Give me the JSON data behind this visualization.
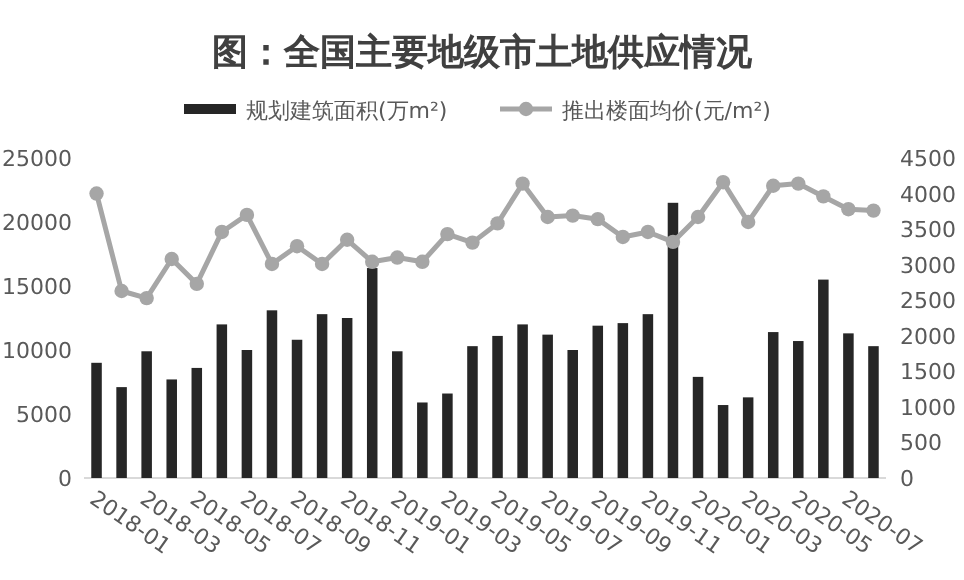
{
  "chart_data": {
    "type": "bar",
    "title": "图：全国主要地级市土地供应情况",
    "categories": [
      "2018-01",
      null,
      "2018-03",
      null,
      "2018-05",
      null,
      "2018-07",
      null,
      "2018-09",
      null,
      "2018-11",
      null,
      "2019-01",
      null,
      "2019-03",
      null,
      "2019-05",
      null,
      "2019-07",
      null,
      "2019-09",
      null,
      "2019-11",
      null,
      "2020-01",
      null,
      "2020-03",
      null,
      "2020-05",
      null,
      "2020-07",
      null
    ],
    "series": [
      {
        "name": "规划建筑面积(万m²)",
        "color": "#262626",
        "values": [
          9000,
          7100,
          9900,
          7700,
          8600,
          12000,
          10000,
          13100,
          10800,
          12800,
          12500,
          16400,
          9900,
          5900,
          6600,
          10300,
          11100,
          12000,
          11200,
          10000,
          11900,
          12100,
          12800,
          21500,
          7900,
          5700,
          6300,
          11400,
          10700,
          15500,
          11300,
          10300
        ]
      },
      {
        "name": "推出楼面均价(元/m²)",
        "type": "line",
        "axis": "y2",
        "color": "#a6a6a6",
        "marker": "circle",
        "values": [
          4000,
          2630,
          2530,
          3080,
          2730,
          3460,
          3700,
          3010,
          3260,
          3010,
          3350,
          3040,
          3100,
          3040,
          3430,
          3310,
          3580,
          4140,
          3670,
          3690,
          3640,
          3390,
          3460,
          3320,
          3670,
          4160,
          3600,
          4110,
          4140,
          3960,
          3780,
          3760
        ]
      }
    ],
    "ylim": [
      0,
      25000
    ],
    "yticks": [
      0,
      5000,
      10000,
      15000,
      20000,
      25000
    ],
    "y2lim": [
      0,
      4500
    ],
    "y2ticks": [
      0,
      500,
      1000,
      1500,
      2000,
      2500,
      3000,
      3500,
      4000,
      4500
    ],
    "legend": "top"
  }
}
